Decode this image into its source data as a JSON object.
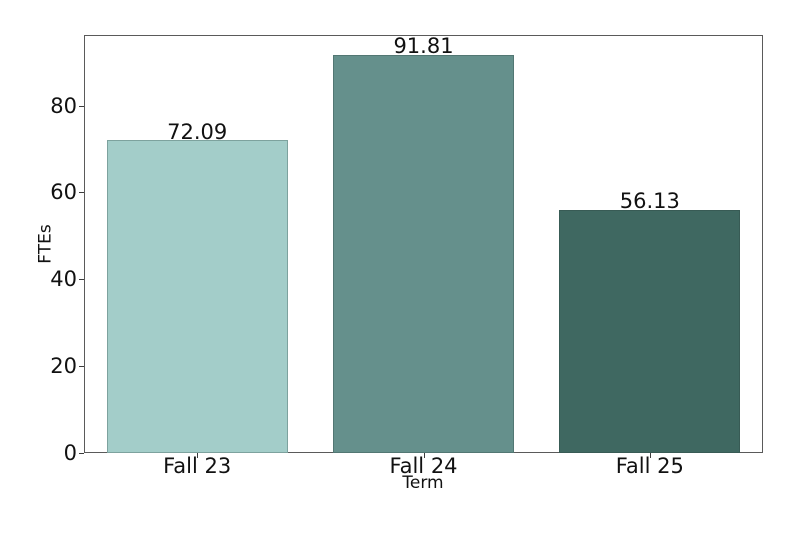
{
  "figure": {
    "background": "#ffffff"
  },
  "chart_data": {
    "type": "bar",
    "title": "",
    "categories": [
      "Fall 23",
      "Fall 24",
      "Fall 25"
    ],
    "values": [
      72.09,
      91.81,
      56.13
    ],
    "value_labels": [
      "72.09",
      "91.81",
      "56.13"
    ],
    "bar_colors": [
      "#a3cdc9",
      "#65908c",
      "#3f6861"
    ],
    "xlabel": "Term",
    "ylabel": "FTEs",
    "ylim": [
      0,
      96.4
    ],
    "yticks": [
      0,
      20,
      40,
      60,
      80
    ],
    "ytick_labels": [
      "0",
      "20",
      "40",
      "60",
      "80"
    ],
    "bar_width_fraction": 0.8,
    "grid": false,
    "legend_position": null,
    "axis_color": "#5a5a5a",
    "tick_color": "#3c3c3c",
    "text_color": "#111111"
  }
}
